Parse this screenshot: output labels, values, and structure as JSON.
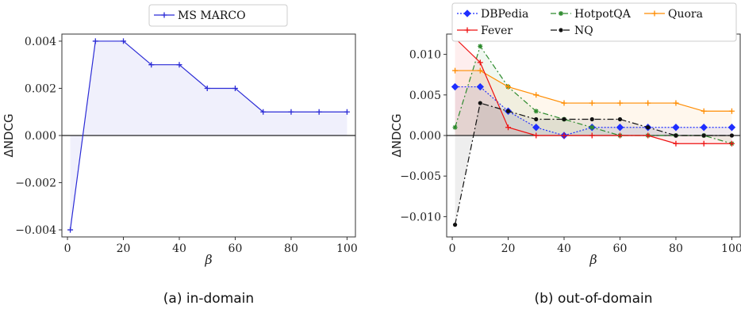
{
  "chart_data": [
    {
      "type": "line",
      "caption": "(a) in-domain",
      "xlabel": "β",
      "ylabel": "ΔNDCG",
      "xlim": [
        -2,
        103
      ],
      "ylim": [
        -0.0043,
        0.0043
      ],
      "xticks": [
        0,
        20,
        40,
        60,
        80,
        100
      ],
      "yticks": [
        -0.004,
        -0.002,
        0.0,
        0.002,
        0.004
      ],
      "ytick_labels": [
        "−0.004",
        "−0.002",
        "0.000",
        "0.002",
        "0.004"
      ],
      "x": [
        1,
        10,
        20,
        30,
        40,
        50,
        60,
        70,
        80,
        90,
        100
      ],
      "legend_position": "top-center",
      "series": [
        {
          "name": "MS MARCO",
          "color": "#2b2bd6",
          "marker": "plus",
          "dash": "",
          "values": [
            -0.004,
            0.004,
            0.004,
            0.003,
            0.003,
            0.002,
            0.002,
            0.001,
            0.001,
            0.001,
            0.001
          ]
        }
      ]
    },
    {
      "type": "line",
      "caption": "(b) out-of-domain",
      "xlabel": "β",
      "ylabel": "ΔNDCG",
      "xlim": [
        -2,
        103
      ],
      "ylim": [
        -0.0125,
        0.0125
      ],
      "xticks": [
        0,
        20,
        40,
        60,
        80,
        100
      ],
      "yticks": [
        -0.01,
        -0.005,
        0.0,
        0.005,
        0.01
      ],
      "ytick_labels": [
        "−0.010",
        "−0.005",
        "0.000",
        "0.005",
        "0.010"
      ],
      "x": [
        1,
        10,
        20,
        30,
        40,
        50,
        60,
        70,
        80,
        90,
        100
      ],
      "legend_position": "top-center",
      "series": [
        {
          "name": "DBPedia",
          "color": "#1f2fff",
          "marker": "diamond",
          "dash": "2,2",
          "values": [
            0.006,
            0.006,
            0.003,
            0.001,
            0.0,
            0.001,
            0.001,
            0.001,
            0.001,
            0.001,
            0.001
          ]
        },
        {
          "name": "HotpotQA",
          "color": "#2e8b2e",
          "marker": "star",
          "dash": "7,3,2,3",
          "values": [
            0.001,
            0.011,
            0.006,
            0.003,
            0.002,
            0.001,
            0.0,
            0.0,
            0.0,
            0.0,
            -0.001
          ]
        },
        {
          "name": "Quora",
          "color": "#ff8c00",
          "marker": "plus",
          "dash": "",
          "values": [
            0.008,
            0.008,
            0.006,
            0.005,
            0.004,
            0.004,
            0.004,
            0.004,
            0.004,
            0.003,
            0.003
          ]
        },
        {
          "name": "Fever",
          "color": "#ee1111",
          "marker": "plus",
          "dash": "",
          "values": [
            0.012,
            0.009,
            0.001,
            0.0,
            0.0,
            0.0,
            0.0,
            0.0,
            -0.001,
            -0.001,
            -0.001
          ]
        },
        {
          "name": "NQ",
          "color": "#111111",
          "marker": "circle",
          "dash": "8,3,2,3",
          "values": [
            -0.011,
            0.004,
            0.003,
            0.002,
            0.002,
            0.002,
            0.002,
            0.001,
            0.0,
            0.0,
            0.0
          ]
        }
      ]
    }
  ]
}
